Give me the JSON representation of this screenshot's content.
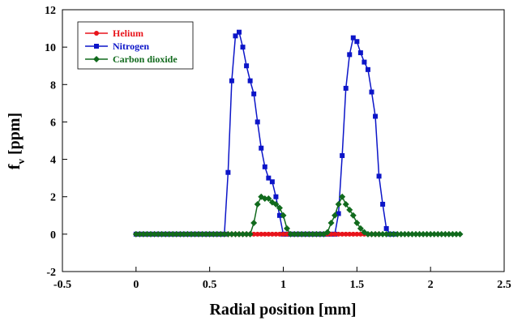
{
  "chart_data": {
    "type": "line",
    "title": "",
    "xlabel": "Radial position [mm]",
    "ylabel": {
      "main": "f",
      "subscript": "v",
      "unit": " [ppm]"
    },
    "xlim": [
      -0.5,
      2.5
    ],
    "ylim": [
      -2,
      12
    ],
    "xticks": [
      "-0.5",
      "0",
      "0.5",
      "1",
      "1.5",
      "2",
      "2.5"
    ],
    "yticks": [
      "-2",
      "0",
      "2",
      "4",
      "6",
      "8",
      "10",
      "12"
    ],
    "grid": false,
    "legend_position": "top-left",
    "series": [
      {
        "name": "Helium",
        "color": "#e8141b",
        "marker": "circle",
        "x": [
          0,
          0.025,
          0.05,
          0.075,
          0.1,
          0.125,
          0.15,
          0.175,
          0.2,
          0.225,
          0.25,
          0.275,
          0.3,
          0.325,
          0.35,
          0.375,
          0.4,
          0.425,
          0.45,
          0.475,
          0.5,
          0.525,
          0.55,
          0.575,
          0.6,
          0.625,
          0.65,
          0.675,
          0.7,
          0.725,
          0.75,
          0.775,
          0.8,
          0.825,
          0.85,
          0.875,
          0.9,
          0.925,
          0.95,
          0.975,
          1.0,
          1.025,
          1.05,
          1.075,
          1.1,
          1.125,
          1.15,
          1.175,
          1.2,
          1.225,
          1.25,
          1.275,
          1.3,
          1.325,
          1.35,
          1.375,
          1.4,
          1.425,
          1.45,
          1.475,
          1.5,
          1.525,
          1.55,
          1.575,
          1.6,
          1.625,
          1.65
        ],
        "y": [
          0,
          0,
          0,
          0,
          0,
          0,
          0,
          0,
          0,
          0,
          0,
          0,
          0,
          0,
          0,
          0,
          0,
          0,
          0,
          0,
          0,
          0,
          0,
          0,
          0,
          0,
          0,
          0,
          0,
          0,
          0,
          0,
          0,
          0,
          0,
          0,
          0,
          0,
          0,
          0,
          0,
          0,
          0,
          0,
          0,
          0,
          0,
          0,
          0,
          0,
          0,
          0,
          0,
          0,
          0,
          0,
          0,
          0,
          0,
          0,
          0,
          0,
          0,
          0,
          0,
          0,
          0
        ]
      },
      {
        "name": "Nitrogen",
        "color": "#0c15c8",
        "marker": "square",
        "x": [
          0,
          0.025,
          0.05,
          0.075,
          0.1,
          0.125,
          0.15,
          0.175,
          0.2,
          0.225,
          0.25,
          0.275,
          0.3,
          0.325,
          0.35,
          0.375,
          0.4,
          0.425,
          0.45,
          0.475,
          0.5,
          0.525,
          0.55,
          0.575,
          0.6,
          0.625,
          0.65,
          0.675,
          0.7,
          0.725,
          0.75,
          0.775,
          0.8,
          0.825,
          0.85,
          0.875,
          0.9,
          0.925,
          0.95,
          0.975,
          1.0,
          1.025,
          1.05,
          1.075,
          1.1,
          1.125,
          1.15,
          1.175,
          1.2,
          1.225,
          1.25,
          1.275,
          1.3,
          1.325,
          1.35,
          1.375,
          1.4,
          1.425,
          1.45,
          1.475,
          1.5,
          1.525,
          1.55,
          1.575,
          1.6,
          1.625,
          1.65,
          1.675,
          1.7,
          1.725,
          1.75
        ],
        "y": [
          0,
          0,
          0,
          0,
          0,
          0,
          0,
          0,
          0,
          0,
          0,
          0,
          0,
          0,
          0,
          0,
          0,
          0,
          0,
          0,
          0,
          0,
          0,
          0,
          0,
          3.3,
          8.2,
          10.6,
          10.8,
          10.0,
          9.0,
          8.2,
          7.5,
          6.0,
          4.6,
          3.6,
          3.0,
          2.8,
          2.0,
          1.0,
          0,
          0,
          0,
          0,
          0,
          0,
          0,
          0,
          0,
          0,
          0,
          0,
          0,
          0,
          0,
          1.1,
          4.2,
          7.8,
          9.6,
          10.5,
          10.3,
          9.7,
          9.2,
          8.8,
          7.6,
          6.3,
          3.1,
          1.6,
          0.3,
          0,
          0
        ]
      },
      {
        "name": "Carbon dioxide",
        "color": "#116a1d",
        "marker": "diamond",
        "x": [
          0,
          0.025,
          0.05,
          0.075,
          0.1,
          0.125,
          0.15,
          0.175,
          0.2,
          0.225,
          0.25,
          0.275,
          0.3,
          0.325,
          0.35,
          0.375,
          0.4,
          0.425,
          0.45,
          0.475,
          0.5,
          0.525,
          0.55,
          0.575,
          0.6,
          0.625,
          0.65,
          0.675,
          0.7,
          0.725,
          0.75,
          0.775,
          0.8,
          0.825,
          0.85,
          0.875,
          0.9,
          0.925,
          0.95,
          0.975,
          1.0,
          1.025,
          1.05,
          1.075,
          1.1,
          1.125,
          1.15,
          1.175,
          1.2,
          1.225,
          1.25,
          1.275,
          1.3,
          1.325,
          1.35,
          1.375,
          1.4,
          1.425,
          1.45,
          1.475,
          1.5,
          1.525,
          1.55,
          1.575,
          1.6,
          1.625,
          1.65,
          1.675,
          1.7,
          1.725,
          1.75,
          1.775,
          1.8,
          1.825,
          1.85,
          1.875,
          1.9,
          1.925,
          1.95,
          1.975,
          2.0,
          2.025,
          2.05,
          2.075,
          2.1,
          2.125,
          2.15,
          2.175,
          2.2
        ],
        "y": [
          0,
          0,
          0,
          0,
          0,
          0,
          0,
          0,
          0,
          0,
          0,
          0,
          0,
          0,
          0,
          0,
          0,
          0,
          0,
          0,
          0,
          0,
          0,
          0,
          0,
          0,
          0,
          0,
          0,
          0,
          0,
          0,
          0.6,
          1.6,
          2.0,
          1.9,
          1.9,
          1.7,
          1.6,
          1.4,
          1.0,
          0.3,
          0,
          0,
          0,
          0,
          0,
          0,
          0,
          0,
          0,
          0,
          0.1,
          0.6,
          1.0,
          1.6,
          2.0,
          1.6,
          1.3,
          1.0,
          0.6,
          0.3,
          0.1,
          0,
          0,
          0,
          0,
          0,
          0,
          0,
          0,
          0,
          0,
          0,
          0,
          0,
          0,
          0,
          0,
          0,
          0,
          0,
          0,
          0,
          0,
          0,
          0,
          0,
          0
        ]
      }
    ]
  }
}
